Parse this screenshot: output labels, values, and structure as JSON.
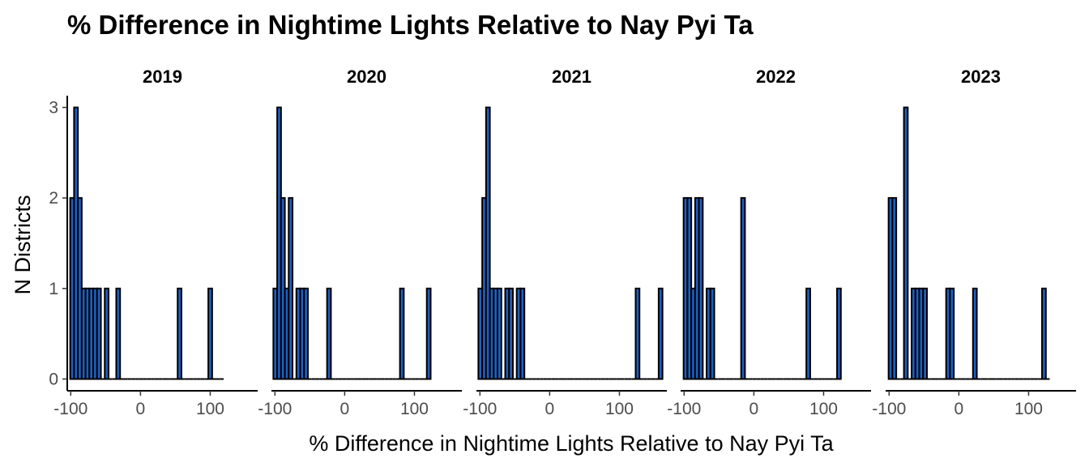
{
  "chart_data": {
    "type": "bar",
    "title": "% Difference in Nightime Lights Relative to Nay Pyi Ta",
    "xlabel": "% Difference in Nightime Lights Relative to Nay Pyi Ta",
    "ylabel": "N Districts",
    "xlim": [
      -105,
      168
    ],
    "ylim": [
      -0.13,
      3.13
    ],
    "x_ticks": [
      -100,
      0,
      100
    ],
    "x_tick_labels": [
      "-100",
      "0",
      "100"
    ],
    "y_ticks": [
      0,
      1,
      2,
      3
    ],
    "y_tick_labels": [
      "0",
      "1",
      "2",
      "3"
    ],
    "bin_width": 5.5,
    "grid": false,
    "colors": {
      "bar_fill": "#1f5fbf",
      "bar_stroke": "#000000"
    },
    "panels": [
      {
        "label": "2019",
        "bin_start": -100.75,
        "counts": [
          2,
          3,
          2,
          1,
          1,
          1,
          1,
          1,
          0,
          1,
          0,
          0,
          1,
          0,
          0,
          0,
          0,
          0,
          0,
          0,
          0,
          0,
          0,
          0,
          0,
          0,
          0,
          0,
          1,
          0,
          0,
          0,
          0,
          0,
          0,
          0,
          1,
          0,
          0,
          0
        ]
      },
      {
        "label": "2020",
        "bin_start": -102.25,
        "counts": [
          1,
          3,
          2,
          1,
          2,
          0,
          1,
          1,
          1,
          0,
          0,
          0,
          0,
          0,
          1,
          0,
          0,
          0,
          0,
          0,
          0,
          0,
          0,
          0,
          0,
          0,
          0,
          0,
          0,
          0,
          0,
          0,
          0,
          1,
          0,
          0,
          0,
          0,
          0,
          0,
          1
        ]
      },
      {
        "label": "2021",
        "bin_start": -102.25,
        "counts": [
          1,
          2,
          3,
          1,
          1,
          1,
          0,
          1,
          1,
          0,
          1,
          1,
          0,
          0,
          0,
          0,
          0,
          0,
          0,
          0,
          0,
          0,
          0,
          0,
          0,
          0,
          0,
          0,
          0,
          0,
          0,
          0,
          0,
          0,
          0,
          0,
          0,
          0,
          0,
          0,
          0,
          1,
          0,
          0,
          0,
          0,
          0,
          1
        ]
      },
      {
        "label": "2022",
        "bin_start": -100.75,
        "counts": [
          2,
          2,
          1,
          2,
          2,
          0,
          1,
          1,
          0,
          0,
          0,
          0,
          0,
          0,
          0,
          2,
          0,
          0,
          0,
          0,
          0,
          0,
          0,
          0,
          0,
          0,
          0,
          0,
          0,
          0,
          0,
          0,
          1,
          0,
          0,
          0,
          0,
          0,
          0,
          0,
          1
        ]
      },
      {
        "label": "2023",
        "bin_start": -100.75,
        "counts": [
          2,
          2,
          0,
          0,
          3,
          0,
          1,
          1,
          1,
          1,
          0,
          0,
          0,
          0,
          0,
          1,
          1,
          0,
          0,
          0,
          0,
          0,
          1,
          0,
          0,
          0,
          0,
          0,
          0,
          0,
          0,
          0,
          0,
          0,
          0,
          0,
          0,
          0,
          0,
          0,
          1,
          0
        ]
      }
    ]
  }
}
